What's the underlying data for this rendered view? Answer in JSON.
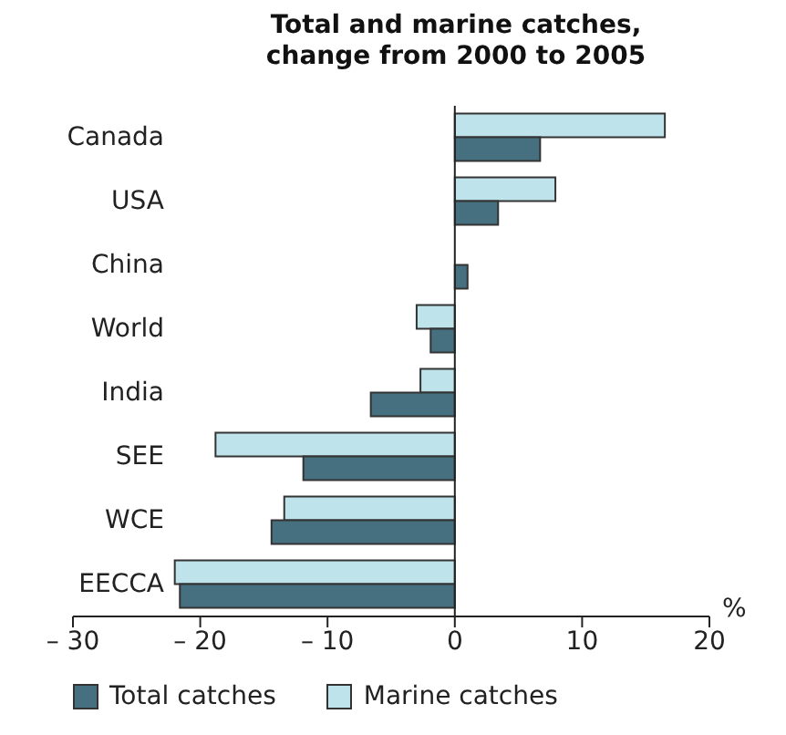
{
  "chart_data": {
    "type": "bar",
    "orientation": "horizontal",
    "title": "Total and marine catches, change from 2000 to 2005",
    "xlabel": "%",
    "categories": [
      "Canada",
      "USA",
      "China",
      "World",
      "India",
      "SEE",
      "WCE",
      "EECCA"
    ],
    "series": [
      {
        "name": "Total catches",
        "color": "#46707f",
        "values": [
          6.7,
          3.4,
          1.0,
          -1.9,
          -6.6,
          -11.9,
          -14.4,
          -21.6
        ]
      },
      {
        "name": "Marine catches",
        "color": "#bfe3ea",
        "values": [
          16.5,
          7.9,
          0,
          -3.0,
          -2.7,
          -18.8,
          -13.4,
          -22.0
        ]
      }
    ],
    "xlim": [
      -30,
      20
    ],
    "xticks": [
      {
        "value": -30,
        "label": "– 30"
      },
      {
        "value": -20,
        "label": "– 20"
      },
      {
        "value": -10,
        "label": "– 10"
      },
      0,
      10,
      20
    ],
    "legend": "bottom"
  }
}
